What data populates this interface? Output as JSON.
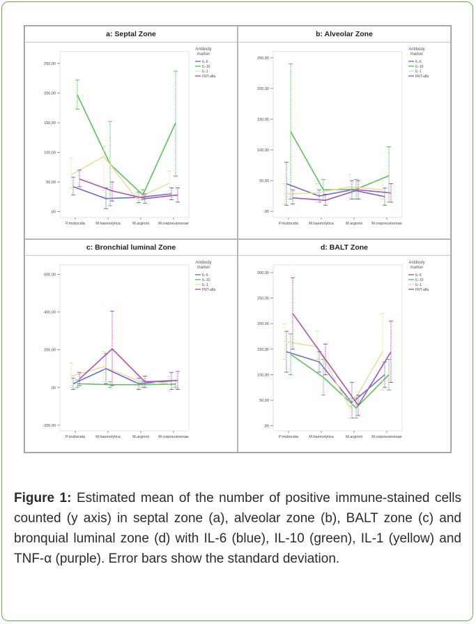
{
  "colors": {
    "border": "#6aa84f",
    "IL-6": "#6c6cd8",
    "IL-10": "#5cc05c",
    "IL-1": "#e8e0a0",
    "FNT-alfa": "#b050b0"
  },
  "caption": {
    "label": "Figure 1:",
    "text": " Estimated mean of the number of positive immune-stained cells counted (y axis) in septal zone (a), alveolar zone (b), BALT zone (c) and bronquial luminal zone (d) with IL-6 (blue), IL-10 (green), IL-1 (yellow) and TNF-α (purple). Error bars show the standard deviation."
  },
  "chart_data": [
    {
      "title": "a: Septal Zone",
      "type": "line",
      "categories": [
        "P.multocida",
        "M.haemolytica",
        "M.arginini",
        "M.ovipneumoniae"
      ],
      "ylim": [
        -10,
        270
      ],
      "yticks": [
        0,
        50,
        100,
        150,
        200,
        250
      ],
      "ytick_labels": [
        ",00",
        "50,00",
        "100,00",
        "150,00",
        "200,00",
        "250,00"
      ],
      "legend_title": [
        "Antibody",
        "marker"
      ],
      "legend_position": "top-right",
      "series": [
        {
          "name": "IL-6",
          "values": [
            42,
            22,
            24,
            30
          ],
          "lower": [
            28,
            5,
            15,
            20
          ],
          "upper": [
            58,
            40,
            33,
            40
          ]
        },
        {
          "name": "IL-10",
          "values": [
            197,
            80,
            28,
            150
          ],
          "lower": [
            173,
            10,
            20,
            60
          ],
          "upper": [
            222,
            152,
            37,
            237
          ]
        },
        {
          "name": "IL-1",
          "values": [
            62,
            93,
            22,
            48
          ],
          "lower": [
            40,
            35,
            14,
            28
          ],
          "upper": [
            90,
            110,
            30,
            68
          ]
        },
        {
          "name": "FNT-alfa",
          "values": [
            55,
            35,
            22,
            28
          ],
          "lower": [
            42,
            18,
            14,
            16
          ],
          "upper": [
            70,
            50,
            30,
            40
          ]
        }
      ]
    },
    {
      "title": "b: Alveolar Zone",
      "type": "line",
      "categories": [
        "P.multocida",
        "M.haemolytica",
        "M.arginini",
        "M.ovipneumoniae"
      ],
      "ylim": [
        -10,
        260
      ],
      "yticks": [
        0,
        50,
        100,
        150,
        200,
        250
      ],
      "ytick_labels": [
        ",00",
        "50,00",
        "100,00",
        "150,00",
        "200,00",
        "250,00"
      ],
      "legend_title": [
        "Antibody",
        "marker"
      ],
      "legend_position": "top-right",
      "series": [
        {
          "name": "IL-6",
          "values": [
            45,
            25,
            35,
            24
          ],
          "lower": [
            10,
            15,
            20,
            10
          ],
          "upper": [
            80,
            35,
            50,
            38
          ]
        },
        {
          "name": "IL-10",
          "values": [
            130,
            35,
            36,
            58
          ],
          "lower": [
            20,
            18,
            20,
            15
          ],
          "upper": [
            240,
            52,
            52,
            105
          ]
        },
        {
          "name": "IL-1",
          "values": [
            28,
            30,
            40,
            35
          ],
          "lower": [
            12,
            15,
            22,
            20
          ],
          "upper": [
            45,
            45,
            60,
            50
          ]
        },
        {
          "name": "FNT-alfa",
          "values": [
            22,
            18,
            35,
            30
          ],
          "lower": [
            12,
            10,
            20,
            15
          ],
          "upper": [
            35,
            28,
            50,
            45
          ]
        }
      ]
    },
    {
      "title": "c: Bronchial luminal Zone",
      "type": "line",
      "categories": [
        "P.multocida",
        "M.haemolytica",
        "M.arginini",
        "M.ovipneumoniae"
      ],
      "ylim": [
        -230,
        650
      ],
      "yticks": [
        -200,
        0,
        200,
        400,
        600
      ],
      "ytick_labels": [
        "-200,00",
        ",00",
        "200,00",
        "400,00",
        "600,00"
      ],
      "legend_title": [
        "Antibody",
        "marker"
      ],
      "legend_position": "top-right",
      "series": [
        {
          "name": "IL-6",
          "values": [
            20,
            100,
            20,
            35
          ],
          "lower": [
            -10,
            20,
            -10,
            -10
          ],
          "upper": [
            50,
            180,
            50,
            80
          ]
        },
        {
          "name": "IL-10",
          "values": [
            20,
            15,
            15,
            18
          ],
          "lower": [
            0,
            0,
            0,
            0
          ],
          "upper": [
            40,
            30,
            30,
            36
          ]
        },
        {
          "name": "IL-1",
          "values": [
            60,
            110,
            40,
            20
          ],
          "lower": [
            0,
            30,
            10,
            -20
          ],
          "upper": [
            130,
            190,
            70,
            60
          ]
        },
        {
          "name": "FNT-alfa",
          "values": [
            45,
            205,
            30,
            38
          ],
          "lower": [
            10,
            10,
            0,
            -10
          ],
          "upper": [
            80,
            405,
            60,
            85
          ]
        }
      ]
    },
    {
      "title": "d: BALT Zone",
      "type": "line",
      "categories": [
        "P.multocida",
        "M.haemolytica",
        "M.arginini",
        "M.ovipneumoniae"
      ],
      "ylim": [
        -10,
        315
      ],
      "yticks": [
        0,
        50,
        100,
        150,
        200,
        250,
        300
      ],
      "ytick_labels": [
        ",00",
        "50,00",
        "100,00",
        "150,00",
        "200,00",
        "250,00",
        "300,00"
      ],
      "legend_title": [
        "Antibody",
        "marker"
      ],
      "legend_position": "top-right",
      "series": [
        {
          "name": "IL-6",
          "values": [
            145,
            125,
            45,
            100
          ],
          "lower": [
            105,
            105,
            15,
            75
          ],
          "upper": [
            185,
            145,
            85,
            125
          ]
        },
        {
          "name": "IL-10",
          "values": [
            140,
            95,
            35,
            100
          ],
          "lower": [
            100,
            60,
            15,
            70
          ],
          "upper": [
            180,
            130,
            55,
            130
          ]
        },
        {
          "name": "IL-1",
          "values": [
            165,
            155,
            35,
            145
          ],
          "lower": [
            130,
            130,
            15,
            70
          ],
          "upper": [
            200,
            185,
            55,
            220
          ]
        },
        {
          "name": "FNT-alfa",
          "values": [
            220,
            130,
            40,
            145
          ],
          "lower": [
            150,
            100,
            20,
            85
          ],
          "upper": [
            290,
            160,
            60,
            205
          ]
        }
      ]
    }
  ]
}
